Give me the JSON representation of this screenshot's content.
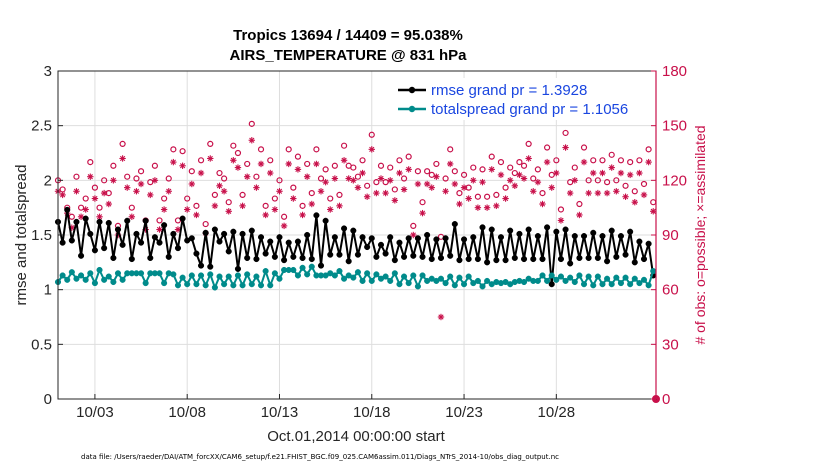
{
  "chart_data": {
    "type": "line",
    "title_line1": "Tropics 13694 / 14409 = 95.038%",
    "title_line2": "AIRS_TEMPERATURE @ 831 hPa",
    "xlabel": "Oct.01,2014 00:00:00 start",
    "ylabel": "rmse and totalspread",
    "ylabel_right": "# of obs: o=possible; ×=assimilated",
    "xlim": [
      1,
      33.4
    ],
    "ylim": [
      0,
      3
    ],
    "ylim_right": [
      0,
      180
    ],
    "x_ticks": [
      {
        "value": 3,
        "label": "10/03"
      },
      {
        "value": 8,
        "label": "10/08"
      },
      {
        "value": 13,
        "label": "10/13"
      },
      {
        "value": 18,
        "label": "10/18"
      },
      {
        "value": 23,
        "label": "10/23"
      },
      {
        "value": 28,
        "label": "10/28"
      }
    ],
    "y_ticks": [
      {
        "value": 0,
        "label": "0"
      },
      {
        "value": 0.5,
        "label": "0.5"
      },
      {
        "value": 1,
        "label": "1"
      },
      {
        "value": 1.5,
        "label": "1.5"
      },
      {
        "value": 2,
        "label": "2"
      },
      {
        "value": 2.5,
        "label": "2.5"
      },
      {
        "value": 3,
        "label": "3"
      }
    ],
    "y_ticks_right": [
      {
        "value": 0,
        "label": "0"
      },
      {
        "value": 30,
        "label": "30"
      },
      {
        "value": 60,
        "label": "60"
      },
      {
        "value": 90,
        "label": "90"
      },
      {
        "value": 120,
        "label": "120"
      },
      {
        "value": 150,
        "label": "150"
      },
      {
        "value": 180,
        "label": "180"
      }
    ],
    "grid": true,
    "legend_position": "top-right",
    "series": [
      {
        "name": "rmse grand pr = 1.3928",
        "color": "#000000",
        "axis": "left",
        "x": [
          1.0,
          1.25,
          1.5,
          1.75,
          2.0,
          2.25,
          2.5,
          2.75,
          3.0,
          3.25,
          3.5,
          3.75,
          4.0,
          4.25,
          4.5,
          4.75,
          5.0,
          5.25,
          5.5,
          5.75,
          6.0,
          6.25,
          6.5,
          6.75,
          7.0,
          7.25,
          7.5,
          7.75,
          8.0,
          8.25,
          8.5,
          8.75,
          9.0,
          9.25,
          9.5,
          9.75,
          10.0,
          10.25,
          10.5,
          10.75,
          11.0,
          11.25,
          11.5,
          11.75,
          12.0,
          12.25,
          12.5,
          12.75,
          13.0,
          13.25,
          13.5,
          13.75,
          14.0,
          14.25,
          14.5,
          14.75,
          15.0,
          15.25,
          15.5,
          15.75,
          16.0,
          16.25,
          16.5,
          16.75,
          17.0,
          17.25,
          17.5,
          17.75,
          18.0,
          18.25,
          18.5,
          18.75,
          19.0,
          19.25,
          19.5,
          19.75,
          20.0,
          20.25,
          20.5,
          20.75,
          21.0,
          21.25,
          21.5,
          21.75,
          22.0,
          22.25,
          22.5,
          22.75,
          23.0,
          23.25,
          23.5,
          23.75,
          24.0,
          24.25,
          24.5,
          24.75,
          25.0,
          25.25,
          25.5,
          25.75,
          26.0,
          26.25,
          26.5,
          26.75,
          27.0,
          27.25,
          27.5,
          27.75,
          28.0,
          28.25,
          28.5,
          28.75,
          29.0,
          29.25,
          29.5,
          29.75,
          30.0,
          30.25,
          30.5,
          30.75,
          31.0,
          31.25,
          31.5,
          31.75,
          32.0,
          32.25,
          32.5,
          32.75,
          33.0,
          33.25
        ],
        "values": [
          1.62,
          1.43,
          1.73,
          1.45,
          1.62,
          1.31,
          1.65,
          1.51,
          1.36,
          1.62,
          1.38,
          1.61,
          1.29,
          1.55,
          1.41,
          1.63,
          1.28,
          1.51,
          1.43,
          1.63,
          1.29,
          1.48,
          1.43,
          1.59,
          1.3,
          1.51,
          1.38,
          1.65,
          1.45,
          1.47,
          1.33,
          1.22,
          1.52,
          1.21,
          1.55,
          1.44,
          1.51,
          1.35,
          1.53,
          1.19,
          1.51,
          1.29,
          1.54,
          1.28,
          1.48,
          1.33,
          1.44,
          1.3,
          1.48,
          1.27,
          1.43,
          1.3,
          1.44,
          1.29,
          1.5,
          1.28,
          1.68,
          1.22,
          1.63,
          1.32,
          1.48,
          1.32,
          1.56,
          1.26,
          1.54,
          1.32,
          1.48,
          1.39,
          1.47,
          1.3,
          1.41,
          1.33,
          1.48,
          1.27,
          1.43,
          1.3,
          1.47,
          1.31,
          1.47,
          1.3,
          1.5,
          1.28,
          1.46,
          1.29,
          1.47,
          1.31,
          1.6,
          1.27,
          1.46,
          1.28,
          1.48,
          1.28,
          1.57,
          1.25,
          1.55,
          1.27,
          1.48,
          1.27,
          1.54,
          1.29,
          1.51,
          1.28,
          1.55,
          1.28,
          1.49,
          1.28,
          1.57,
          1.05,
          1.53,
          1.28,
          1.55,
          1.24,
          1.49,
          1.29,
          1.49,
          1.29,
          1.52,
          1.29,
          1.49,
          1.26,
          1.54,
          1.3,
          1.49,
          1.32,
          1.53,
          1.25,
          1.44,
          1.28,
          1.42,
          1.13
        ]
      },
      {
        "name": "totalspread grand pr = 1.1056",
        "color": "#008b8b",
        "axis": "left",
        "x": [
          1.0,
          1.25,
          1.5,
          1.75,
          2.0,
          2.25,
          2.5,
          2.75,
          3.0,
          3.25,
          3.5,
          3.75,
          4.0,
          4.25,
          4.5,
          4.75,
          5.0,
          5.25,
          5.5,
          5.75,
          6.0,
          6.25,
          6.5,
          6.75,
          7.0,
          7.25,
          7.5,
          7.75,
          8.0,
          8.25,
          8.5,
          8.75,
          9.0,
          9.25,
          9.5,
          9.75,
          10.0,
          10.25,
          10.5,
          10.75,
          11.0,
          11.25,
          11.5,
          11.75,
          12.0,
          12.25,
          12.5,
          12.75,
          13.0,
          13.25,
          13.5,
          13.75,
          14.0,
          14.25,
          14.5,
          14.75,
          15.0,
          15.25,
          15.5,
          15.75,
          16.0,
          16.25,
          16.5,
          16.75,
          17.0,
          17.25,
          17.5,
          17.75,
          18.0,
          18.25,
          18.5,
          18.75,
          19.0,
          19.25,
          19.5,
          19.75,
          20.0,
          20.25,
          20.5,
          20.75,
          21.0,
          21.25,
          21.5,
          21.75,
          22.0,
          22.25,
          22.5,
          22.75,
          23.0,
          23.25,
          23.5,
          23.75,
          24.0,
          24.25,
          24.5,
          24.75,
          25.0,
          25.25,
          25.5,
          25.75,
          26.0,
          26.25,
          26.5,
          26.75,
          27.0,
          27.25,
          27.5,
          27.75,
          28.0,
          28.25,
          28.5,
          28.75,
          29.0,
          29.25,
          29.5,
          29.75,
          30.0,
          30.25,
          30.5,
          30.75,
          31.0,
          31.25,
          31.5,
          31.75,
          32.0,
          32.25,
          32.5,
          32.75,
          33.0,
          33.25
        ],
        "values": [
          1.07,
          1.13,
          1.09,
          1.16,
          1.1,
          1.13,
          1.09,
          1.15,
          1.06,
          1.18,
          1.09,
          1.12,
          1.07,
          1.15,
          1.09,
          1.15,
          1.15,
          1.15,
          1.15,
          1.06,
          1.15,
          1.15,
          1.15,
          1.06,
          1.15,
          1.14,
          1.04,
          1.11,
          1.05,
          1.13,
          1.05,
          1.13,
          1.04,
          1.14,
          1.02,
          1.12,
          1.05,
          1.12,
          1.04,
          1.13,
          1.04,
          1.14,
          1.05,
          1.12,
          1.04,
          1.17,
          1.04,
          1.15,
          1.1,
          1.18,
          1.18,
          1.18,
          1.13,
          1.2,
          1.14,
          1.21,
          1.13,
          1.13,
          1.13,
          1.15,
          1.13,
          1.17,
          1.1,
          1.13,
          1.11,
          1.16,
          1.08,
          1.15,
          1.08,
          1.14,
          1.1,
          1.12,
          1.08,
          1.15,
          1.05,
          1.12,
          1.06,
          1.13,
          1.03,
          1.13,
          1.08,
          1.1,
          1.08,
          1.1,
          1.06,
          1.12,
          1.04,
          1.11,
          1.05,
          1.12,
          1.06,
          1.08,
          1.03,
          1.08,
          1.05,
          1.07,
          1.06,
          1.07,
          1.05,
          1.07,
          1.08,
          1.07,
          1.1,
          1.08,
          1.08,
          1.13,
          1.08,
          1.13,
          1.09,
          1.12,
          1.08,
          1.11,
          1.07,
          1.13,
          1.05,
          1.12,
          1.04,
          1.12,
          1.05,
          1.1,
          1.05,
          1.11,
          1.06,
          1.11,
          1.05,
          1.1,
          1.06,
          1.09,
          1.04,
          1.17
        ]
      },
      {
        "name": "obs possible",
        "color": "#c8104a",
        "axis": "right",
        "marker": "o",
        "x": [
          1.0,
          1.25,
          1.5,
          1.75,
          2.0,
          2.25,
          2.5,
          2.75,
          3.0,
          3.25,
          3.5,
          3.75,
          4.0,
          4.25,
          4.5,
          4.75,
          5.0,
          5.25,
          5.5,
          5.75,
          6.0,
          6.25,
          6.5,
          6.75,
          7.0,
          7.25,
          7.5,
          7.75,
          8.0,
          8.25,
          8.5,
          8.75,
          9.0,
          9.25,
          9.5,
          9.75,
          10.0,
          10.25,
          10.5,
          10.75,
          11.0,
          11.25,
          11.5,
          11.75,
          12.0,
          12.25,
          12.5,
          12.75,
          13.0,
          13.25,
          13.5,
          13.75,
          14.0,
          14.25,
          14.5,
          14.75,
          15.0,
          15.25,
          15.5,
          15.75,
          16.0,
          16.25,
          16.5,
          16.75,
          17.0,
          17.25,
          17.5,
          17.75,
          18.0,
          18.25,
          18.5,
          18.75,
          19.0,
          19.25,
          19.5,
          19.75,
          20.0,
          20.25,
          20.5,
          20.75,
          21.0,
          21.25,
          21.5,
          21.75,
          22.0,
          22.25,
          22.5,
          22.75,
          23.0,
          23.25,
          23.5,
          23.75,
          24.0,
          24.25,
          24.5,
          24.75,
          25.0,
          25.25,
          25.5,
          25.75,
          26.0,
          26.25,
          26.5,
          26.75,
          27.0,
          27.25,
          27.5,
          27.75,
          28.0,
          28.25,
          28.5,
          28.75,
          29.0,
          29.25,
          29.5,
          29.75,
          30.0,
          30.25,
          30.5,
          30.75,
          31.0,
          31.25,
          31.5,
          31.75,
          32.0,
          32.25,
          32.5,
          32.75,
          33.0,
          33.25
        ],
        "values": [
          120,
          115,
          105,
          100,
          122,
          105,
          110,
          130,
          116,
          105,
          120,
          113,
          128,
          95,
          140,
          122,
          105,
          121,
          125,
          98,
          119,
          128,
          98,
          110,
          121,
          137,
          98,
          136,
          110,
          125,
          106,
          131,
          96,
          140,
          112,
          124,
          121,
          108,
          139,
          135,
          112,
          129,
          151,
          122,
          137,
          106,
          131,
          110,
          120,
          100,
          137,
          116,
          133,
          106,
          129,
          113,
          137,
          121,
          126,
          110,
          128,
          112,
          139,
          128,
          127,
          122,
          131,
          117,
          145,
          119,
          128,
          119,
          127,
          115,
          131,
          121,
          133,
          95,
          125,
          108,
          125,
          123,
          129,
          89,
          121,
          137,
          125,
          113,
          123,
          116,
          127,
          111,
          126,
          111,
          133,
          112,
          130,
          116,
          127,
          124,
          130,
          128,
          140,
          121,
          126,
          113,
          138,
          123,
          131,
          104,
          146,
          119,
          127,
          107,
          138,
          120,
          131,
          120,
          131,
          119,
          134,
          120,
          131,
          117,
          130,
          114,
          131,
          118,
          137,
          108
        ]
      },
      {
        "name": "obs assimilated",
        "color": "#c8104a",
        "axis": "right",
        "marker": "*",
        "x": [
          1.0,
          1.25,
          1.5,
          1.75,
          2.0,
          2.25,
          2.5,
          2.75,
          3.0,
          3.25,
          3.5,
          3.75,
          4.0,
          4.25,
          4.5,
          4.75,
          5.0,
          5.25,
          5.5,
          5.75,
          6.0,
          6.25,
          6.5,
          6.75,
          7.0,
          7.25,
          7.5,
          7.75,
          8.0,
          8.25,
          8.5,
          8.75,
          9.0,
          9.25,
          9.5,
          9.75,
          10.0,
          10.25,
          10.5,
          10.75,
          11.0,
          11.25,
          11.5,
          11.75,
          12.0,
          12.25,
          12.5,
          12.75,
          13.0,
          13.25,
          13.5,
          13.75,
          14.0,
          14.25,
          14.5,
          14.75,
          15.0,
          15.25,
          15.5,
          15.75,
          16.0,
          16.25,
          16.5,
          16.75,
          17.0,
          17.25,
          17.5,
          17.75,
          18.0,
          18.25,
          18.5,
          18.75,
          19.0,
          19.25,
          19.5,
          19.75,
          20.0,
          20.25,
          20.5,
          20.75,
          21.0,
          21.25,
          21.5,
          21.75,
          22.0,
          22.25,
          22.5,
          22.75,
          23.0,
          23.25,
          23.5,
          23.75,
          24.0,
          24.25,
          24.5,
          24.75,
          25.0,
          25.25,
          25.5,
          25.75,
          26.0,
          26.25,
          26.5,
          26.75,
          27.0,
          27.25,
          27.5,
          27.75,
          28.0,
          28.25,
          28.5,
          28.75,
          29.0,
          29.25,
          29.5,
          29.75,
          30.0,
          30.25,
          30.5,
          30.75,
          31.0,
          31.25,
          31.5,
          31.75,
          32.0,
          32.25,
          32.5,
          32.75,
          33.0,
          33.25
        ],
        "values": [
          114,
          112,
          102,
          94,
          114,
          100,
          104,
          122,
          110,
          100,
          113,
          107,
          120,
          90,
          132,
          116,
          100,
          114,
          118,
          93,
          112,
          120,
          93,
          104,
          114,
          130,
          93,
          128,
          104,
          118,
          101,
          124,
          91,
          132,
          106,
          117,
          114,
          103,
          131,
          127,
          106,
          122,
          142,
          116,
          129,
          101,
          124,
          104,
          114,
          95,
          129,
          110,
          126,
          101,
          122,
          107,
          129,
          114,
          119,
          104,
          121,
          106,
          131,
          121,
          120,
          116,
          124,
          111,
          137,
          113,
          121,
          113,
          120,
          109,
          124,
          115,
          126,
          90,
          118,
          102,
          118,
          116,
          122,
          45,
          114,
          129,
          118,
          107,
          116,
          110,
          120,
          105,
          119,
          105,
          126,
          106,
          123,
          110,
          120,
          117,
          123,
          121,
          132,
          114,
          119,
          107,
          130,
          116,
          124,
          98,
          138,
          113,
          120,
          101,
          130,
          113,
          124,
          113,
          124,
          113,
          127,
          114,
          124,
          111,
          123,
          108,
          124,
          112,
          130,
          103
        ]
      }
    ],
    "extra_point": {
      "x": 33.4,
      "value": 0,
      "axis": "right",
      "note": "marker at right edge"
    }
  },
  "legend": {
    "rmse_label": "rmse grand pr = 1.3928",
    "spread_label": "totalspread grand pr = 1.1056"
  },
  "footnote": "data file: /Users/raeder/DAI/ATM_forcXX/CAM6_setup/f.e21.FHIST_BGC.f09_025.CAM6assim.011/Diags_NTrS_2014-10/obs_diag_output.nc",
  "colors": {
    "rmse": "#000000",
    "spread": "#008b8b",
    "obs": "#c8104a",
    "legend_text": "#1a46e0"
  }
}
